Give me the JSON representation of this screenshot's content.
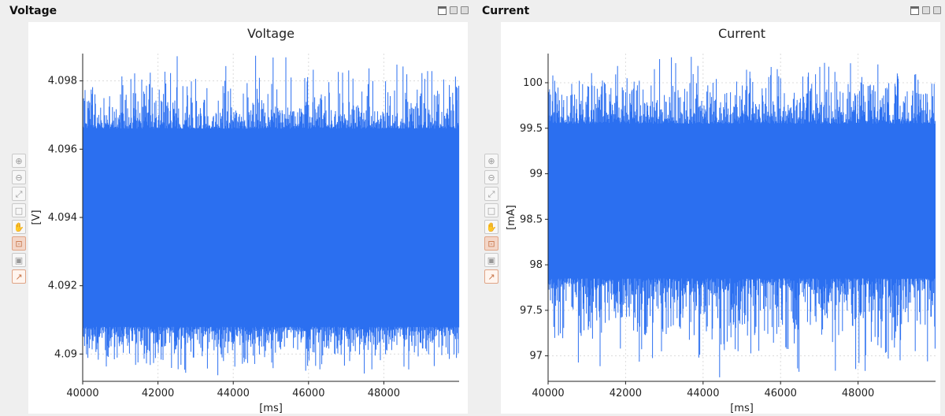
{
  "panels": [
    {
      "title": "Voltage",
      "chart_data": {
        "type": "line",
        "title": "Voltage",
        "xlabel": "[ms]",
        "ylabel": "[V]",
        "xlim": [
          40000,
          50000
        ],
        "ylim": [
          4.0892,
          4.0988
        ],
        "x_ticks": [
          40000,
          42000,
          44000,
          46000,
          48000
        ],
        "x_tick_labels": [
          "40000",
          "42000",
          "44000",
          "46000",
          "48000"
        ],
        "y_ticks": [
          4.09,
          4.092,
          4.094,
          4.096,
          4.098
        ],
        "y_tick_labels": [
          "4.09",
          "4.092",
          "4.094",
          "4.096",
          "4.098"
        ],
        "grid": true,
        "series": [
          {
            "color": "#2b6ff0",
            "band_low": 4.0908,
            "band_high": 4.0966,
            "spike_max": 4.0988,
            "spike_min": 4.0893
          }
        ]
      }
    },
    {
      "title": "Current",
      "chart_data": {
        "type": "line",
        "title": "Current",
        "xlabel": "[ms]",
        "ylabel": "[mA]",
        "xlim": [
          40000,
          50000
        ],
        "ylim": [
          96.72,
          100.32
        ],
        "x_ticks": [
          40000,
          42000,
          44000,
          46000,
          48000
        ],
        "x_tick_labels": [
          "40000",
          "42000",
          "44000",
          "46000",
          "48000"
        ],
        "y_ticks": [
          97,
          97.5,
          98,
          98.5,
          99,
          99.5,
          100
        ],
        "y_tick_labels": [
          "97",
          "97.5",
          "98",
          "98.5",
          "99",
          "99.5",
          "100"
        ],
        "grid": true,
        "series": [
          {
            "color": "#2b6ff0",
            "band_low": 97.85,
            "band_high": 99.55,
            "spike_max": 100.32,
            "spike_min": 96.75
          }
        ]
      }
    }
  ],
  "toolbar_icons": [
    "zoom-in-icon",
    "zoom-out-icon",
    "fit-to-view-icon",
    "select-box-icon",
    "pan-hand-icon",
    "lock-icon",
    "save-icon",
    "chart-mode-icon"
  ]
}
